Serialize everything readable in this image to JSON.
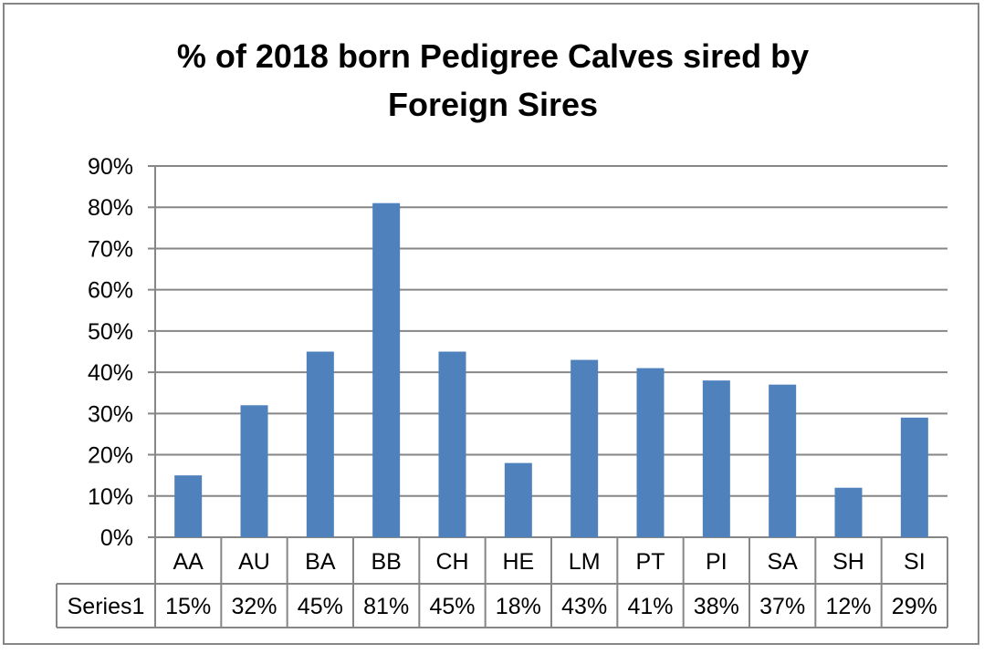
{
  "chart_data": {
    "type": "bar",
    "title_lines": [
      "% of 2018 born Pedigree Calves sired by",
      "Foreign Sires"
    ],
    "categories": [
      "AA",
      "AU",
      "BA",
      "BB",
      "CH",
      "HE",
      "LM",
      "PT",
      "PI",
      "SA",
      "SH",
      "SI"
    ],
    "series": [
      {
        "name": "Series1",
        "values": [
          0.15,
          0.32,
          0.45,
          0.81,
          0.45,
          0.18,
          0.43,
          0.41,
          0.38,
          0.37,
          0.12,
          0.29
        ],
        "labels": [
          "15%",
          "32%",
          "45%",
          "81%",
          "45%",
          "18%",
          "43%",
          "41%",
          "38%",
          "37%",
          "12%",
          "29%"
        ],
        "color": "#4f81bd"
      }
    ],
    "y_ticks": [
      "0%",
      "10%",
      "20%",
      "30%",
      "40%",
      "50%",
      "60%",
      "70%",
      "80%",
      "90%"
    ],
    "ylim": [
      0,
      0.9
    ],
    "grid": true,
    "data_table": true
  }
}
